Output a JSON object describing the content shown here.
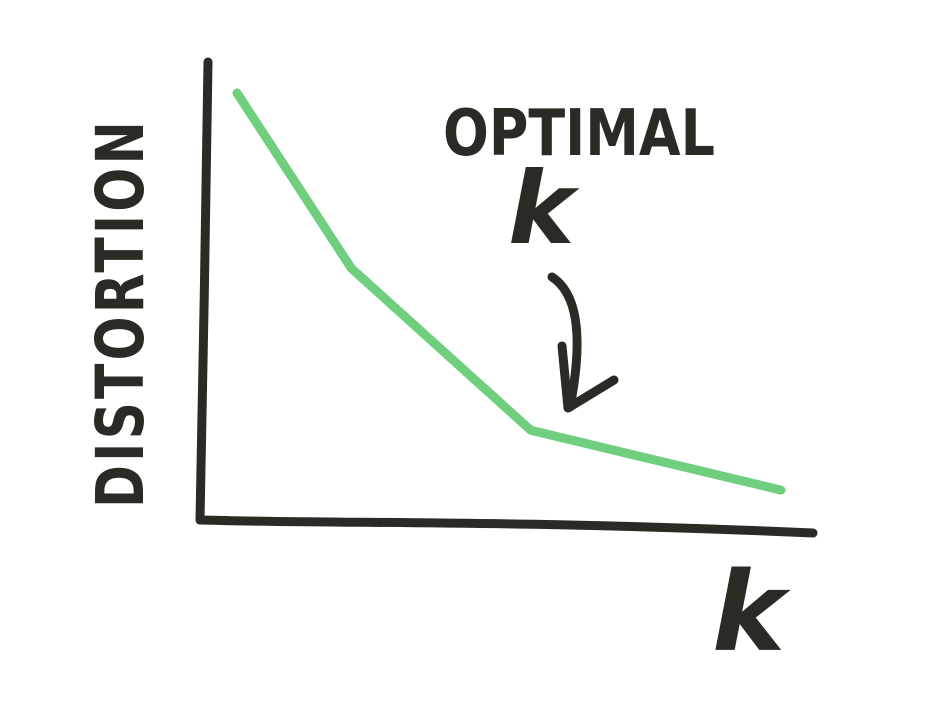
{
  "chart_data": {
    "type": "line",
    "title": "",
    "xlabel": "k",
    "ylabel": "DISTORTION",
    "ylim": [
      0,
      100
    ],
    "xlim": [
      0,
      10
    ],
    "grid": false,
    "legend": "none",
    "series": [
      {
        "x": [
          0,
          2.1,
          5.4,
          10
        ],
        "y": [
          100,
          59,
          21,
          7
        ]
      }
    ],
    "annotations": [
      {
        "text_line1": "OPTIMAL",
        "text_line2": "k",
        "points_to_x": 5.4
      }
    ]
  },
  "colors": {
    "line": "#6fcf7f",
    "ink": "#2b2b25",
    "background": "#ffffff"
  }
}
